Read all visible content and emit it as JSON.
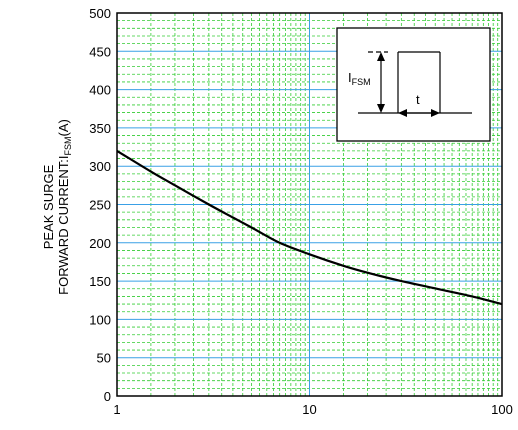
{
  "chart_data": {
    "type": "line",
    "title": "",
    "xlabel": "",
    "ylabel_lines": [
      "PEAK SURGE",
      "FORWARD CURRENT:I",
      "FSM",
      "(A)"
    ],
    "x_scale": "log",
    "xlim": [
      1,
      100
    ],
    "ylim": [
      0,
      500
    ],
    "x_ticks": [
      1,
      10,
      100
    ],
    "x_tick_labels": [
      "1",
      "10",
      "100"
    ],
    "y_ticks": [
      0,
      50,
      100,
      150,
      200,
      250,
      300,
      350,
      400,
      450,
      500
    ],
    "y_tick_labels": [
      "0",
      "50",
      "100",
      "150",
      "200",
      "250",
      "300",
      "350",
      "400",
      "450",
      "500"
    ],
    "grid": true,
    "colors": {
      "major_grid": "#3aa0e6",
      "minor_grid": "#33cc33",
      "curve": "#000000",
      "frame": "#000000",
      "background": "#ffffff"
    },
    "series": [
      {
        "x": [
          1,
          1.5,
          2,
          3,
          4,
          5,
          7,
          10,
          15,
          20,
          30,
          50,
          70,
          100
        ],
        "values": [
          320,
          293,
          275,
          250,
          233,
          220,
          200,
          185,
          170,
          161,
          150,
          138,
          130,
          120
        ]
      }
    ],
    "inset": {
      "label_main": "I",
      "label_sub": "FSM",
      "t_label": "t"
    }
  }
}
